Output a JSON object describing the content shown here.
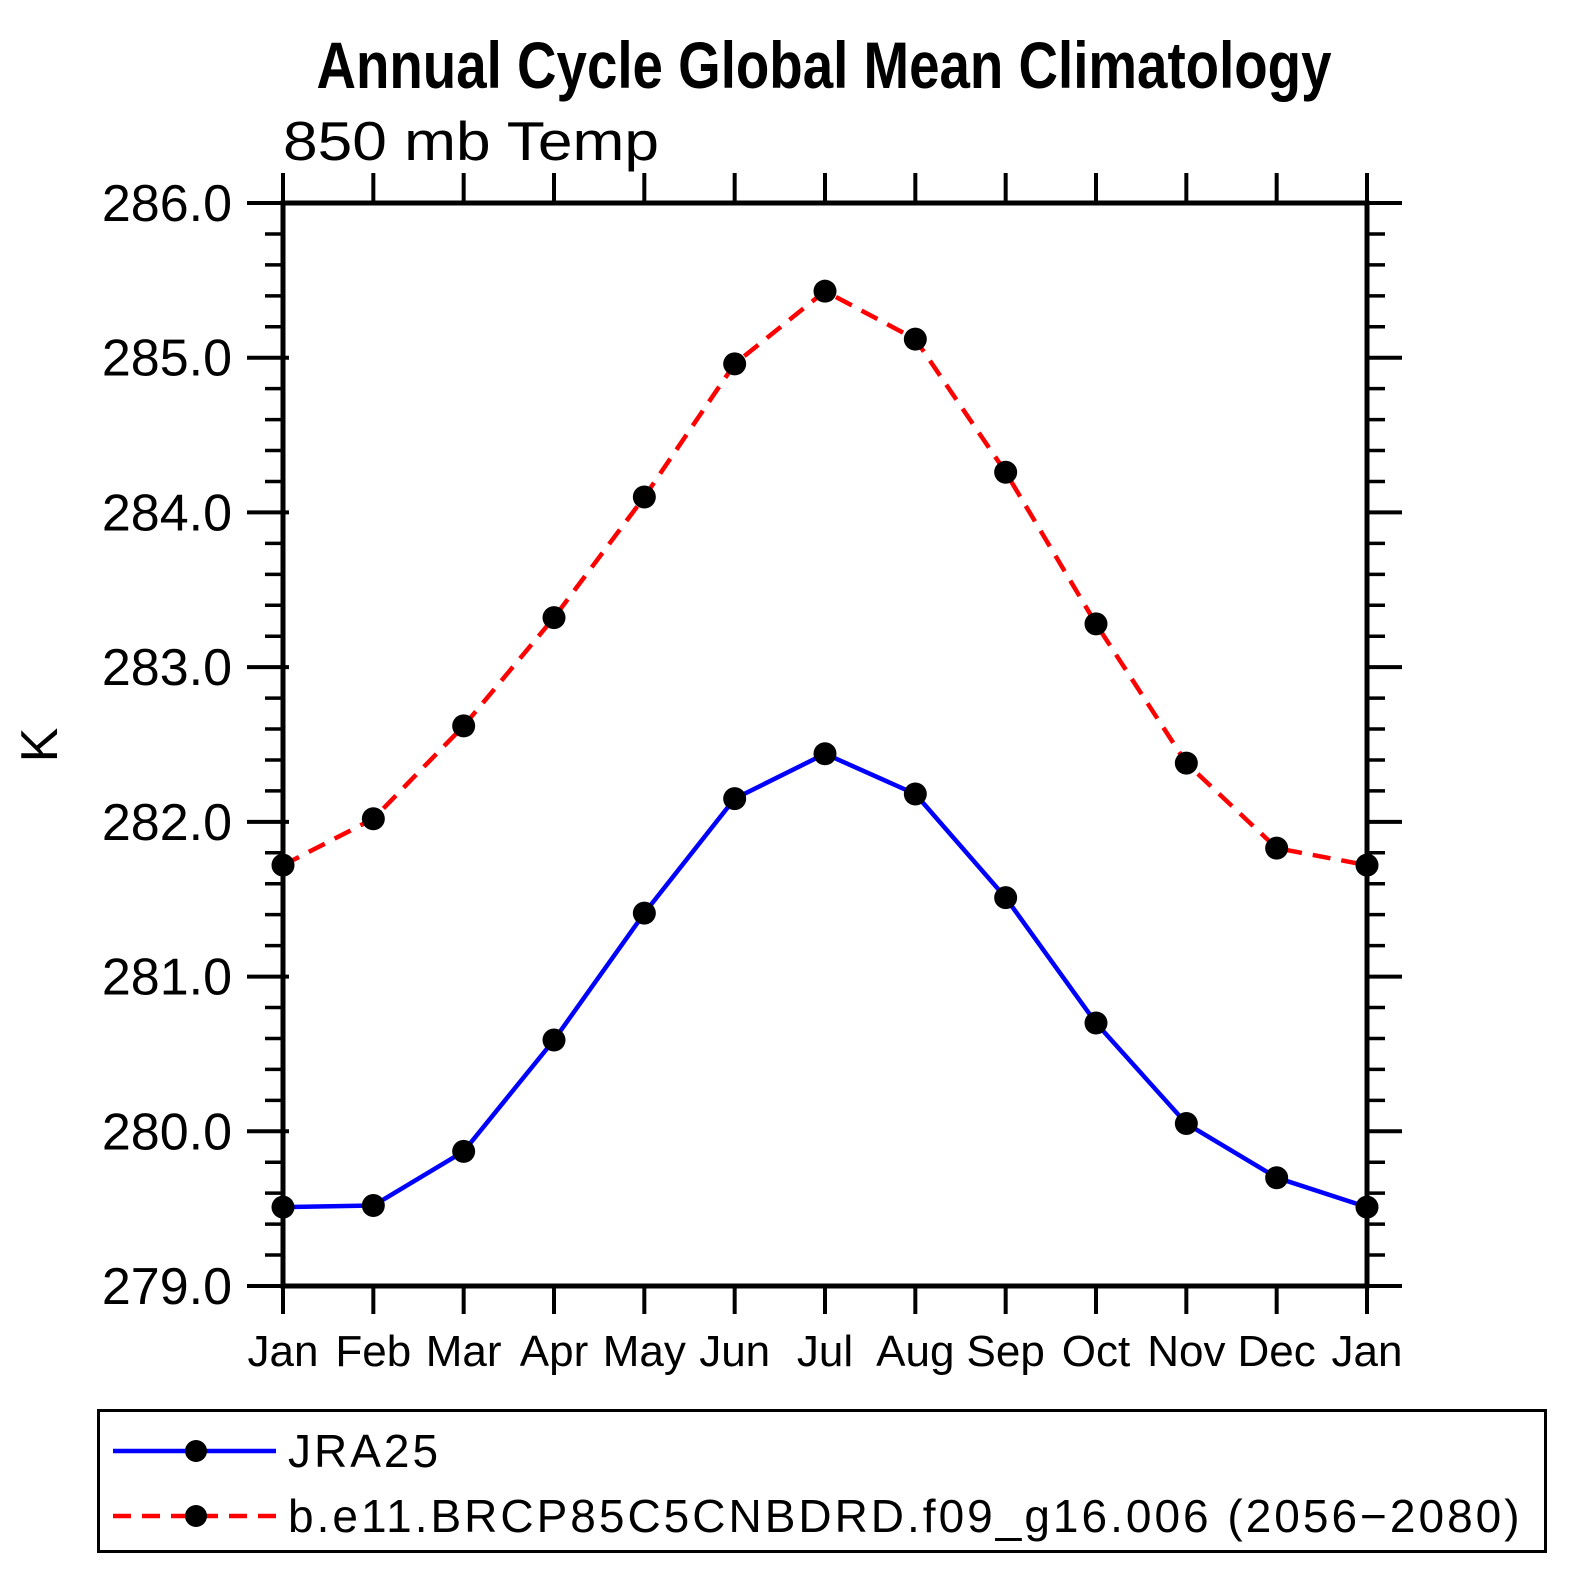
{
  "title": "Annual Cycle Global Mean Climatology",
  "subtitle": "850 mb Temp",
  "ylabel": "K",
  "colors": {
    "jra25_line": "#0000ff",
    "model_line": "#ff0000",
    "marker": "#000000",
    "axis": "#000000"
  },
  "legend": {
    "items": [
      {
        "label": "JRA25",
        "color": "#0000ff",
        "style": "solid",
        "marker": "circle"
      },
      {
        "label": "b.e11.BRCP85C5CNBDRD.f09_g16.006 (2056−2080)",
        "color": "#ff0000",
        "style": "dashed",
        "marker": "circle"
      }
    ]
  },
  "chart_data": {
    "type": "line",
    "categories": [
      "Jan",
      "Feb",
      "Mar",
      "Apr",
      "May",
      "Jun",
      "Jul",
      "Aug",
      "Sep",
      "Oct",
      "Nov",
      "Dec",
      "Jan"
    ],
    "series": [
      {
        "name": "JRA25",
        "color": "#0000ff",
        "line_style": "solid",
        "marker": "circle",
        "marker_color": "#000000",
        "values": [
          279.51,
          279.52,
          279.87,
          280.59,
          281.41,
          282.15,
          282.44,
          282.18,
          281.51,
          280.7,
          280.05,
          279.7,
          279.51
        ]
      },
      {
        "name": "b.e11.BRCP85C5CNBDRD.f09_g16.006 (2056−2080)",
        "color": "#ff0000",
        "line_style": "dashed",
        "marker": "circle",
        "marker_color": "#000000",
        "values": [
          281.72,
          282.02,
          282.62,
          283.32,
          284.1,
          284.96,
          285.43,
          285.12,
          284.26,
          283.28,
          282.38,
          281.83,
          281.72
        ]
      }
    ],
    "title": "Annual Cycle Global Mean Climatology",
    "subtitle": "850 mb Temp",
    "xlabel": "",
    "ylabel": "K",
    "ylim": [
      279.0,
      286.0
    ],
    "ytick_major_step": 1.0,
    "ytick_minor_step": 0.2,
    "ytick_label_format_decimals": 1,
    "grid": false,
    "legend_position": "bottom"
  }
}
